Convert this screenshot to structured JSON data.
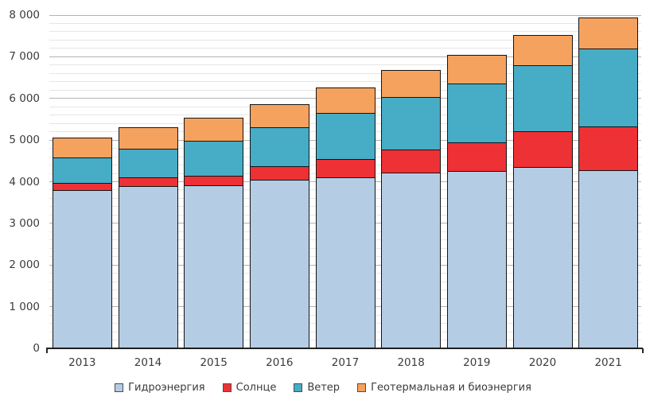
{
  "chart_data": {
    "type": "bar",
    "stacked": true,
    "title": "",
    "xlabel": "",
    "ylabel": "",
    "categories": [
      "2013",
      "2014",
      "2015",
      "2016",
      "2017",
      "2018",
      "2019",
      "2020",
      "2021"
    ],
    "series": [
      {
        "name": "Гидроэнергия",
        "color": "#B5CDE4",
        "values": [
          3790,
          3870,
          3890,
          4035,
          4095,
          4195,
          4230,
          4340,
          4255
        ]
      },
      {
        "name": "Солнце",
        "color": "#EE3135",
        "values": [
          165,
          215,
          240,
          310,
          435,
          560,
          700,
          850,
          1045
        ]
      },
      {
        "name": "Ветер",
        "color": "#47ACC5",
        "values": [
          610,
          690,
          840,
          945,
          1110,
          1265,
          1410,
          1590,
          1880
        ]
      },
      {
        "name": "Геотермальная и биоэнергия",
        "color": "#F5A25F",
        "values": [
          475,
          515,
          540,
          555,
          605,
          650,
          690,
          730,
          750
        ]
      }
    ],
    "totals": [
      5040,
      5290,
      5510,
      5845,
      6245,
      6670,
      7030,
      7510,
      7930
    ],
    "ylim": [
      0,
      8000
    ],
    "y_major_step": 1000,
    "y_minor_step": 200,
    "y_tick_labels": [
      "0",
      "1 000",
      "2 000",
      "3 000",
      "4 000",
      "5 000",
      "6 000",
      "7 000",
      "8 000"
    ],
    "grid": "major+minor horizontal",
    "legend_position": "bottom",
    "colors": {
      "bar_border": "#141414",
      "major_grid": "#b3b3b3",
      "minor_grid": "#e6e6e6",
      "axis": "#262626",
      "text": "#3b3b3b",
      "background": "#ffffff"
    }
  }
}
